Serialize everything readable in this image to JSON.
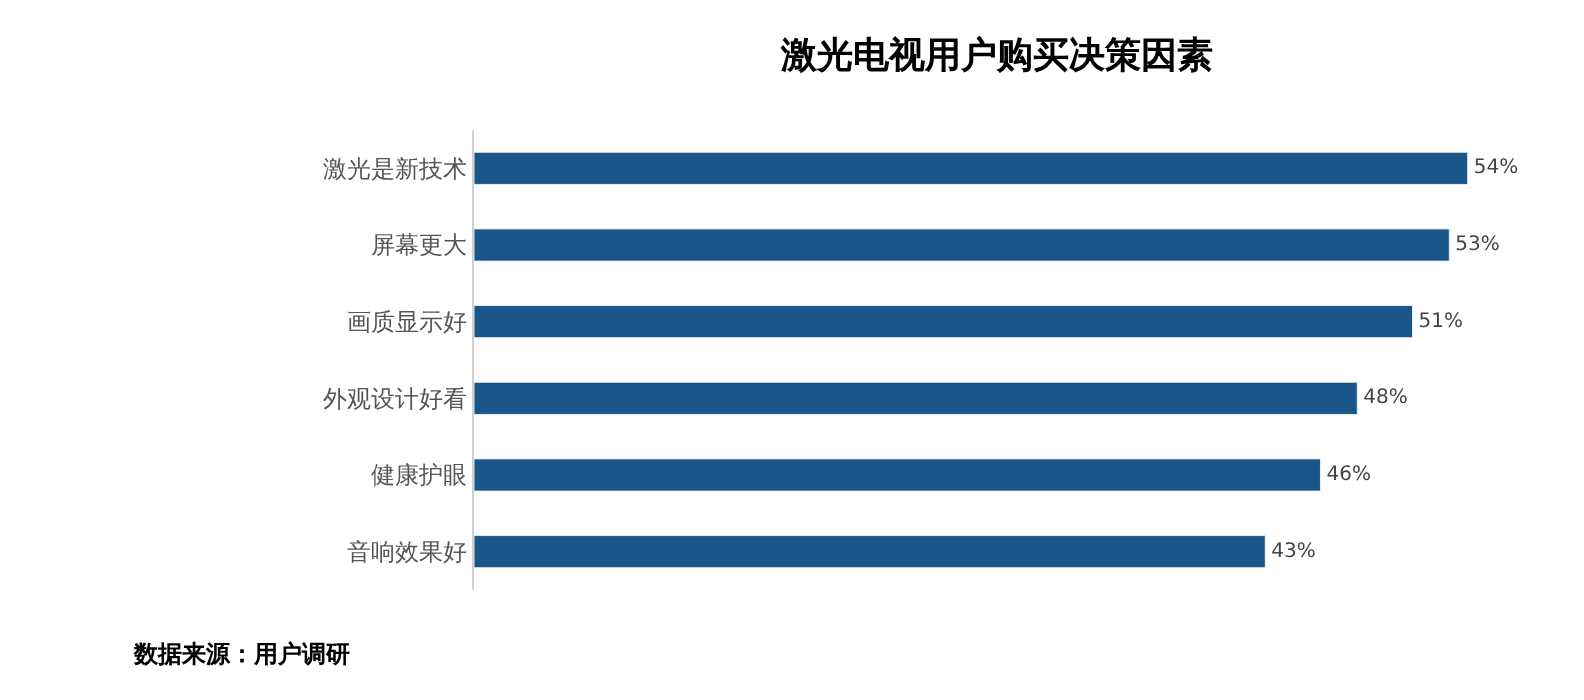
{
  "chart_data": {
    "type": "bar",
    "orientation": "horizontal",
    "title": "激光电视用户购买决策因素",
    "categories": [
      "激光是新技术",
      "屏幕更大",
      "画质显示好",
      "外观设计好看",
      "健康护眼",
      "音响效果好"
    ],
    "values": [
      54,
      53,
      51,
      48,
      46,
      43
    ],
    "value_labels": [
      "54%",
      "53%",
      "51%",
      "48%",
      "46%",
      "43%"
    ],
    "color": "#1a5587",
    "tick_labels": "y",
    "legend": false,
    "annotations": [
      "数据来源：用户调研"
    ]
  }
}
